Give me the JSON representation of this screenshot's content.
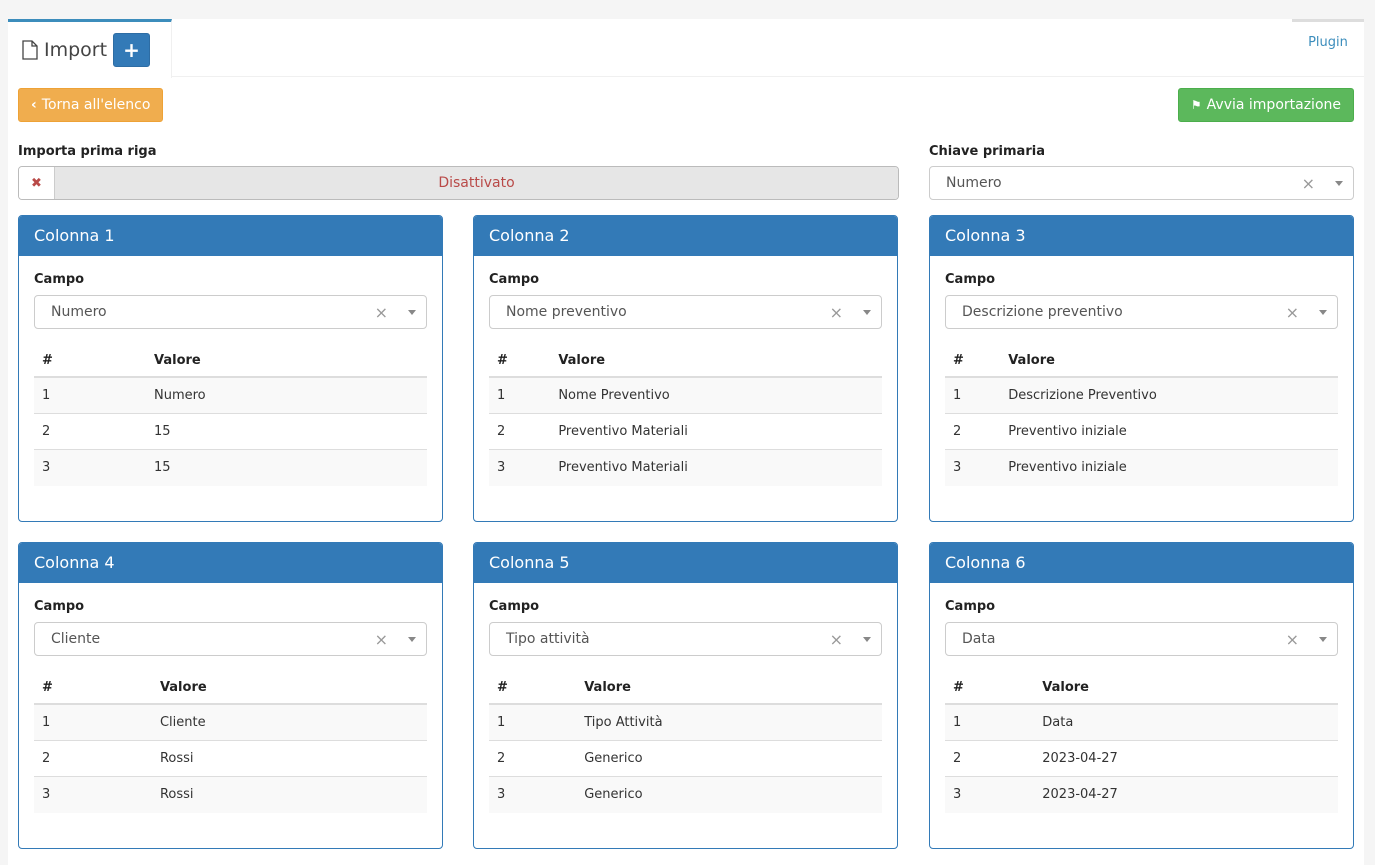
{
  "tabs": {
    "title": "Import",
    "add": "+",
    "plugin": "Plugin"
  },
  "buttons": {
    "back": "Torna all'elenco",
    "start": "Avvia importazione"
  },
  "import_first_row": {
    "label": "Importa prima riga",
    "value": "Disattivato"
  },
  "primary_key": {
    "label": "Chiave primaria",
    "value": "Numero"
  },
  "field_label": "Campo",
  "col_hash": "#",
  "col_value": "Valore",
  "columns": [
    {
      "title": "Colonna 1",
      "field": "Numero",
      "rows": [
        [
          "1",
          "Numero"
        ],
        [
          "2",
          "15"
        ],
        [
          "3",
          "15"
        ]
      ]
    },
    {
      "title": "Colonna 2",
      "field": "Nome preventivo",
      "rows": [
        [
          "1",
          "Nome Preventivo"
        ],
        [
          "2",
          "Preventivo Materiali"
        ],
        [
          "3",
          "Preventivo Materiali"
        ]
      ]
    },
    {
      "title": "Colonna 3",
      "field": "Descrizione preventivo",
      "rows": [
        [
          "1",
          "Descrizione Preventivo"
        ],
        [
          "2",
          "Preventivo iniziale"
        ],
        [
          "3",
          "Preventivo iniziale"
        ]
      ]
    },
    {
      "title": "Colonna 4",
      "field": "Cliente",
      "rows": [
        [
          "1",
          "Cliente"
        ],
        [
          "2",
          "Rossi"
        ],
        [
          "3",
          "Rossi"
        ]
      ]
    },
    {
      "title": "Colonna 5",
      "field": "Tipo attività",
      "rows": [
        [
          "1",
          "Tipo Attività"
        ],
        [
          "2",
          "Generico"
        ],
        [
          "3",
          "Generico"
        ]
      ]
    },
    {
      "title": "Colonna 6",
      "field": "Data",
      "rows": [
        [
          "1",
          "Data"
        ],
        [
          "2",
          "2023-04-27"
        ],
        [
          "3",
          "2023-04-27"
        ]
      ]
    }
  ]
}
